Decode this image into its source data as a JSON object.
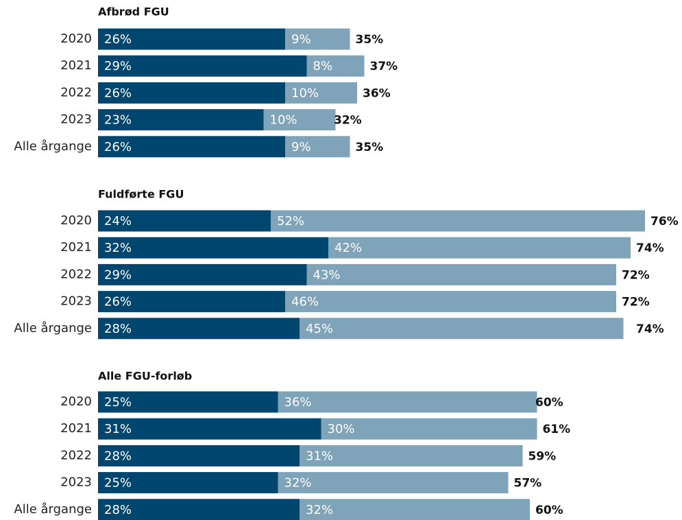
{
  "chart_data": [
    {
      "type": "bar",
      "title": "Afbrød FGU",
      "categories": [
        "2020",
        "2021",
        "2022",
        "2023",
        "Alle årgange"
      ],
      "xlim": [
        0,
        80
      ],
      "series": [
        {
          "color": "#00466e",
          "values": [
            26,
            29,
            26,
            23,
            26
          ],
          "value_labels": [
            "26%",
            "29%",
            "26%",
            "23%",
            "26%"
          ]
        },
        {
          "color": "#7fa3b8",
          "values": [
            9,
            8,
            10,
            10,
            9
          ],
          "value_labels": [
            "9%",
            "8%",
            "10%",
            "10%",
            "9%"
          ]
        }
      ],
      "totals": [
        35,
        37,
        36,
        32,
        35
      ],
      "total_labels": [
        "35%",
        "37%",
        "36%",
        "32%",
        "35%"
      ]
    },
    {
      "type": "bar",
      "title": "Fuldførte FGU",
      "categories": [
        "2020",
        "2021",
        "2022",
        "2023",
        "Alle årgange"
      ],
      "xlim": [
        0,
        80
      ],
      "series": [
        {
          "color": "#00466e",
          "values": [
            24,
            32,
            29,
            26,
            28
          ],
          "value_labels": [
            "24%",
            "32%",
            "29%",
            "26%",
            "28%"
          ]
        },
        {
          "color": "#7fa3b8",
          "values": [
            52,
            42,
            43,
            46,
            45
          ],
          "value_labels": [
            "52%",
            "42%",
            "43%",
            "46%",
            "45%"
          ]
        }
      ],
      "totals": [
        76,
        74,
        72,
        72,
        74
      ],
      "total_labels": [
        "76%",
        "74%",
        "72%",
        "72%",
        "74%"
      ]
    },
    {
      "type": "bar",
      "title": "Alle FGU-forløb",
      "categories": [
        "2020",
        "2021",
        "2022",
        "2023",
        "Alle årgange"
      ],
      "xlim": [
        0,
        80
      ],
      "series": [
        {
          "color": "#00466e",
          "values": [
            25,
            31,
            28,
            25,
            28
          ],
          "value_labels": [
            "25%",
            "31%",
            "28%",
            "25%",
            "28%"
          ]
        },
        {
          "color": "#7fa3b8",
          "values": [
            36,
            30,
            31,
            32,
            32
          ],
          "value_labels": [
            "36%",
            "30%",
            "31%",
            "32%",
            "32%"
          ]
        }
      ],
      "totals": [
        60,
        61,
        59,
        57,
        60
      ],
      "total_labels": [
        "60%",
        "61%",
        "59%",
        "57%",
        "60%"
      ]
    }
  ]
}
